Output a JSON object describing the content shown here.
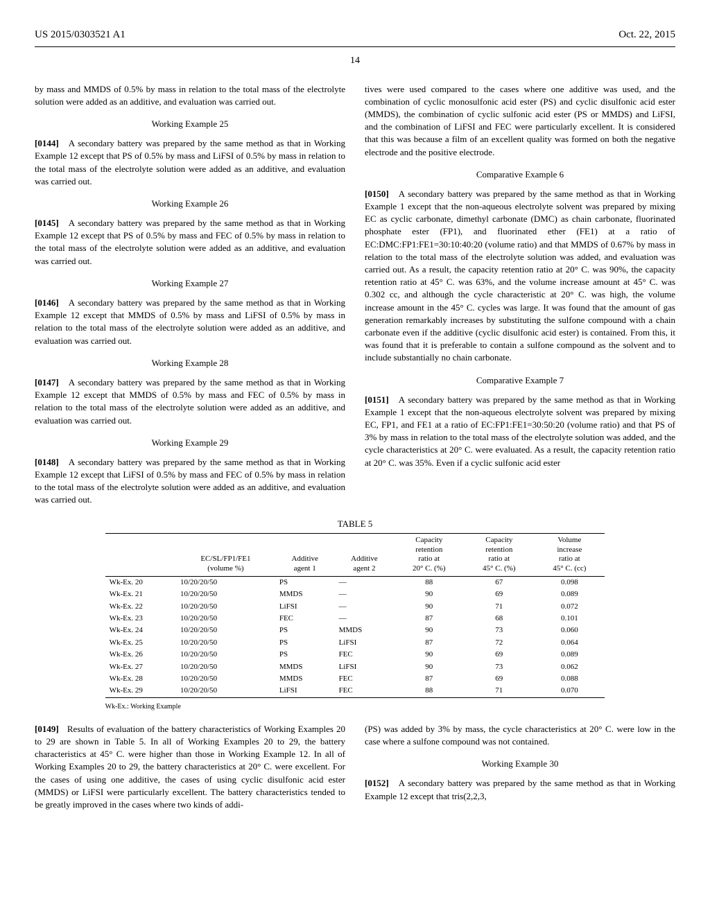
{
  "header": {
    "pub_number": "US 2015/0303521 A1",
    "pub_date": "Oct. 22, 2015",
    "page_number": "14"
  },
  "left": {
    "p_intro": "by mass and MMDS of 0.5% by mass in relation to the total mass of the electrolyte solution were added as an additive, and evaluation was carried out.",
    "h25": "Working Example 25",
    "p25_num": "[0144]",
    "p25": "A secondary battery was prepared by the same method as that in Working Example 12 except that PS of 0.5% by mass and LiFSI of 0.5% by mass in relation to the total mass of the electrolyte solution were added as an additive, and evaluation was carried out.",
    "h26": "Working Example 26",
    "p26_num": "[0145]",
    "p26": "A secondary battery was prepared by the same method as that in Working Example 12 except that PS of 0.5% by mass and FEC of 0.5% by mass in relation to the total mass of the electrolyte solution were added as an additive, and evaluation was carried out.",
    "h27": "Working Example 27",
    "p27_num": "[0146]",
    "p27": "A secondary battery was prepared by the same method as that in Working Example 12 except that MMDS of 0.5% by mass and LiFSI of 0.5% by mass in relation to the total mass of the electrolyte solution were added as an additive, and evaluation was carried out.",
    "h28": "Working Example 28",
    "p28_num": "[0147]",
    "p28": "A secondary battery was prepared by the same method as that in Working Example 12 except that MMDS of 0.5% by mass and FEC of 0.5% by mass in relation to the total mass of the electrolyte solution were added as an additive, and evaluation was carried out.",
    "h29": "Working Example 29",
    "p29_num": "[0148]",
    "p29": "A secondary battery was prepared by the same method as that in Working Example 12 except that LiFSI of 0.5% by mass and FEC of 0.5% by mass in relation to the total mass of the electrolyte solution were added as an additive, and evaluation was carried out."
  },
  "right": {
    "p_top": "tives were used compared to the cases where one additive was used, and the combination of cyclic monosulfonic acid ester (PS) and cyclic disulfonic acid ester (MMDS), the combination of cyclic sulfonic acid ester (PS or MMDS) and LiFSI, and the combination of LiFSI and FEC were particularly excellent. It is considered that this was because a film of an excellent quality was formed on both the negative electrode and the positive electrode.",
    "h_c6": "Comparative Example 6",
    "p_c6_num": "[0150]",
    "p_c6": "A secondary battery was prepared by the same method as that in Working Example 1 except that the non-aqueous electrolyte solvent was prepared by mixing EC as cyclic carbonate, dimethyl carbonate (DMC) as chain carbonate, fluorinated phosphate ester (FP1), and fluorinated ether (FE1) at a ratio of EC:DMC:FP1:FE1=30:10:40:20 (volume ratio) and that MMDS of 0.67% by mass in relation to the total mass of the electrolyte solution was added, and evaluation was carried out. As a result, the capacity retention ratio at 20° C. was 90%, the capacity retention ratio at 45° C. was 63%, and the volume increase amount at 45° C. was 0.302 cc, and although the cycle characteristic at 20° C. was high, the volume increase amount in the 45° C. cycles was large. It was found that the amount of gas generation remarkably increases by substituting the sulfone compound with a chain carbonate even if the additive (cyclic disulfonic acid ester) is contained. From this, it was found that it is preferable to contain a sulfone compound as the solvent and to include substantially no chain carbonate.",
    "h_c7": "Comparative Example 7",
    "p_c7_num": "[0151]",
    "p_c7": "A secondary battery was prepared by the same method as that in Working Example 1 except that the non-aqueous electrolyte solvent was prepared by mixing EC, FP1, and FE1 at a ratio of EC:FP1:FE1=30:50:20 (volume ratio) and that PS of 3% by mass in relation to the total mass of the electrolyte solution was added, and the cycle characteristics at 20° C. were evaluated. As a result, the capacity retention ratio at 20° C. was 35%. Even if a cyclic sulfonic acid ester"
  },
  "table5": {
    "caption": "TABLE 5",
    "columns": [
      "",
      "EC/SL/FP1/FE1\n(volume %)",
      "Additive\nagent 1",
      "Additive\nagent 2",
      "Capacity\nretention\nratio at\n20° C. (%)",
      "Capacity\nretention\nratio at\n45° C. (%)",
      "Volume\nincrease\nratio at\n45° C. (cc)"
    ],
    "rows": [
      [
        "Wk-Ex. 20",
        "10/20/20/50",
        "PS",
        "—",
        "88",
        "67",
        "0.098"
      ],
      [
        "Wk-Ex. 21",
        "10/20/20/50",
        "MMDS",
        "—",
        "90",
        "69",
        "0.089"
      ],
      [
        "Wk-Ex. 22",
        "10/20/20/50",
        "LiFSI",
        "—",
        "90",
        "71",
        "0.072"
      ],
      [
        "Wk-Ex. 23",
        "10/20/20/50",
        "FEC",
        "—",
        "87",
        "68",
        "0.101"
      ],
      [
        "Wk-Ex. 24",
        "10/20/20/50",
        "PS",
        "MMDS",
        "90",
        "73",
        "0.060"
      ],
      [
        "Wk-Ex. 25",
        "10/20/20/50",
        "PS",
        "LiFSI",
        "87",
        "72",
        "0.064"
      ],
      [
        "Wk-Ex. 26",
        "10/20/20/50",
        "PS",
        "FEC",
        "90",
        "69",
        "0.089"
      ],
      [
        "Wk-Ex. 27",
        "10/20/20/50",
        "MMDS",
        "LiFSI",
        "90",
        "73",
        "0.062"
      ],
      [
        "Wk-Ex. 28",
        "10/20/20/50",
        "MMDS",
        "FEC",
        "87",
        "69",
        "0.088"
      ],
      [
        "Wk-Ex. 29",
        "10/20/20/50",
        "LiFSI",
        "FEC",
        "88",
        "71",
        "0.070"
      ]
    ],
    "footnote": "Wk-Ex.: Working Example"
  },
  "bottom": {
    "left_num": "[0149]",
    "left": "Results of evaluation of the battery characteristics of Working Examples 20 to 29 are shown in Table 5. In all of Working Examples 20 to 29, the battery characteristics at 45° C. were higher than those in Working Example 12. In all of Working Examples 20 to 29, the battery characteristics at 20° C. were excellent. For the cases of using one additive, the cases of using cyclic disulfonic acid ester (MMDS) or LiFSI were particularly excellent. The battery characteristics tended to be greatly improved in the cases where two kinds of addi-",
    "right_p1": "(PS) was added by 3% by mass, the cycle characteristics at 20° C. were low in the case where a sulfone compound was not contained.",
    "right_h30": "Working Example 30",
    "right_p2_num": "[0152]",
    "right_p2": "A secondary battery was prepared by the same method as that in Working Example 12 except that tris(2,2,3,"
  }
}
